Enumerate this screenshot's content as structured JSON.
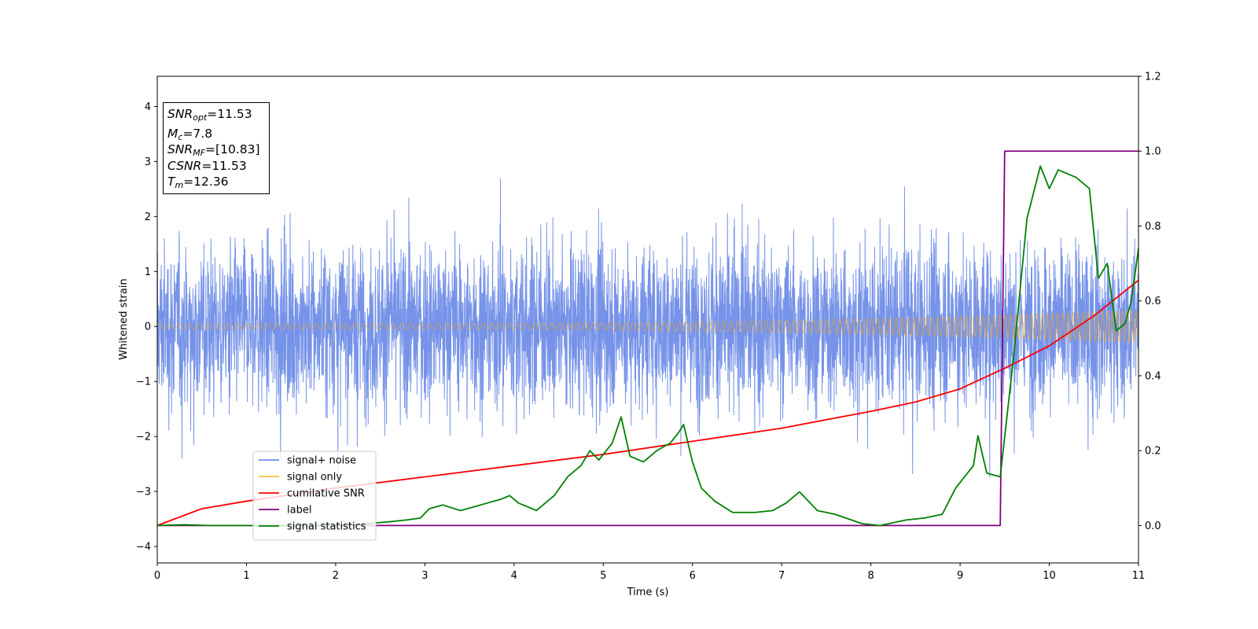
{
  "chart_data": {
    "type": "line",
    "title": "",
    "xlabel": "Time (s)",
    "ylabel": "Whitened strain",
    "xlim": [
      0,
      11
    ],
    "ylim_left": [
      -4.3,
      4.55
    ],
    "ylim_right": [
      -0.1,
      1.2
    ],
    "x_ticks": [
      0,
      1,
      2,
      3,
      4,
      5,
      6,
      7,
      8,
      9,
      10,
      11
    ],
    "y_ticks_left": [
      -4,
      -3,
      -2,
      -1,
      0,
      1,
      2,
      3,
      4
    ],
    "y_ticks_right": [
      0.0,
      0.2,
      0.4,
      0.6,
      0.8,
      1.0,
      1.2
    ],
    "grid": false,
    "legend_position": "lower-left",
    "series": [
      {
        "name": "signal+ noise",
        "axis": "left",
        "color": "#4169e1",
        "description_values": "whitened noise, amplitude within about -3.9 to 4.2, mean 0",
        "approx_envelope": [
          -2.4,
          2.4
        ]
      },
      {
        "name": "signal only",
        "axis": "left",
        "color": "#ffa500",
        "amplitude_start": 0.05,
        "amplitude_end": 0.3
      },
      {
        "name": "cumilative SNR",
        "axis": "right",
        "color": "#ff0000",
        "x": [
          0,
          0.5,
          1,
          2,
          3,
          4,
          5,
          6,
          7,
          8,
          8.5,
          9,
          9.5,
          10,
          10.5,
          11
        ],
        "y": [
          0.0,
          0.045,
          0.065,
          0.1,
          0.13,
          0.16,
          0.19,
          0.225,
          0.26,
          0.305,
          0.33,
          0.365,
          0.42,
          0.48,
          0.56,
          0.655
        ]
      },
      {
        "name": "label",
        "axis": "right",
        "color": "#800080",
        "x": [
          0,
          9.45,
          9.5,
          11
        ],
        "y": [
          0,
          0,
          1,
          1
        ]
      },
      {
        "name": "signal statistics",
        "axis": "right",
        "color": "#008000",
        "x": [
          0,
          0.3,
          0.6,
          1,
          1.5,
          2,
          2.3,
          2.6,
          2.8,
          2.95,
          3.05,
          3.2,
          3.4,
          3.55,
          3.7,
          3.85,
          3.95,
          4.05,
          4.25,
          4.45,
          4.6,
          4.75,
          4.85,
          4.95,
          5.1,
          5.2,
          5.3,
          5.45,
          5.6,
          5.75,
          5.85,
          5.9,
          6.0,
          6.1,
          6.25,
          6.45,
          6.7,
          6.9,
          7.05,
          7.2,
          7.4,
          7.6,
          7.9,
          8.1,
          8.4,
          8.6,
          8.8,
          8.95,
          9.05,
          9.15,
          9.2,
          9.3,
          9.45,
          9.6,
          9.75,
          9.9,
          10.0,
          10.1,
          10.3,
          10.45,
          10.55,
          10.65,
          10.75,
          10.85,
          10.92,
          11.0
        ],
        "y": [
          0,
          0.002,
          0.0,
          0.0,
          0.0,
          0.0,
          0.004,
          0.01,
          0.015,
          0.02,
          0.045,
          0.055,
          0.04,
          0.05,
          0.06,
          0.07,
          0.08,
          0.06,
          0.04,
          0.08,
          0.13,
          0.16,
          0.2,
          0.175,
          0.22,
          0.29,
          0.185,
          0.17,
          0.2,
          0.22,
          0.25,
          0.27,
          0.17,
          0.1,
          0.065,
          0.035,
          0.035,
          0.04,
          0.06,
          0.09,
          0.04,
          0.03,
          0.005,
          0.0,
          0.015,
          0.02,
          0.03,
          0.1,
          0.13,
          0.16,
          0.24,
          0.14,
          0.13,
          0.45,
          0.82,
          0.96,
          0.9,
          0.95,
          0.93,
          0.9,
          0.66,
          0.7,
          0.52,
          0.54,
          0.6,
          0.74
        ]
      }
    ]
  },
  "info_box": {
    "snr_opt": {
      "sym": "SNR",
      "sub": "opt",
      "value": "=11.53"
    },
    "mc": {
      "sym": "M",
      "sub": "c",
      "value": "=7.8"
    },
    "snr_mf": {
      "sym": "SNR",
      "sub": "MF",
      "value": "=[10.83]"
    },
    "csnr": {
      "sym": "CSNR",
      "value": "=11.53"
    },
    "tm": {
      "sym": "T",
      "sub": "m",
      "value": "=12.36"
    }
  }
}
